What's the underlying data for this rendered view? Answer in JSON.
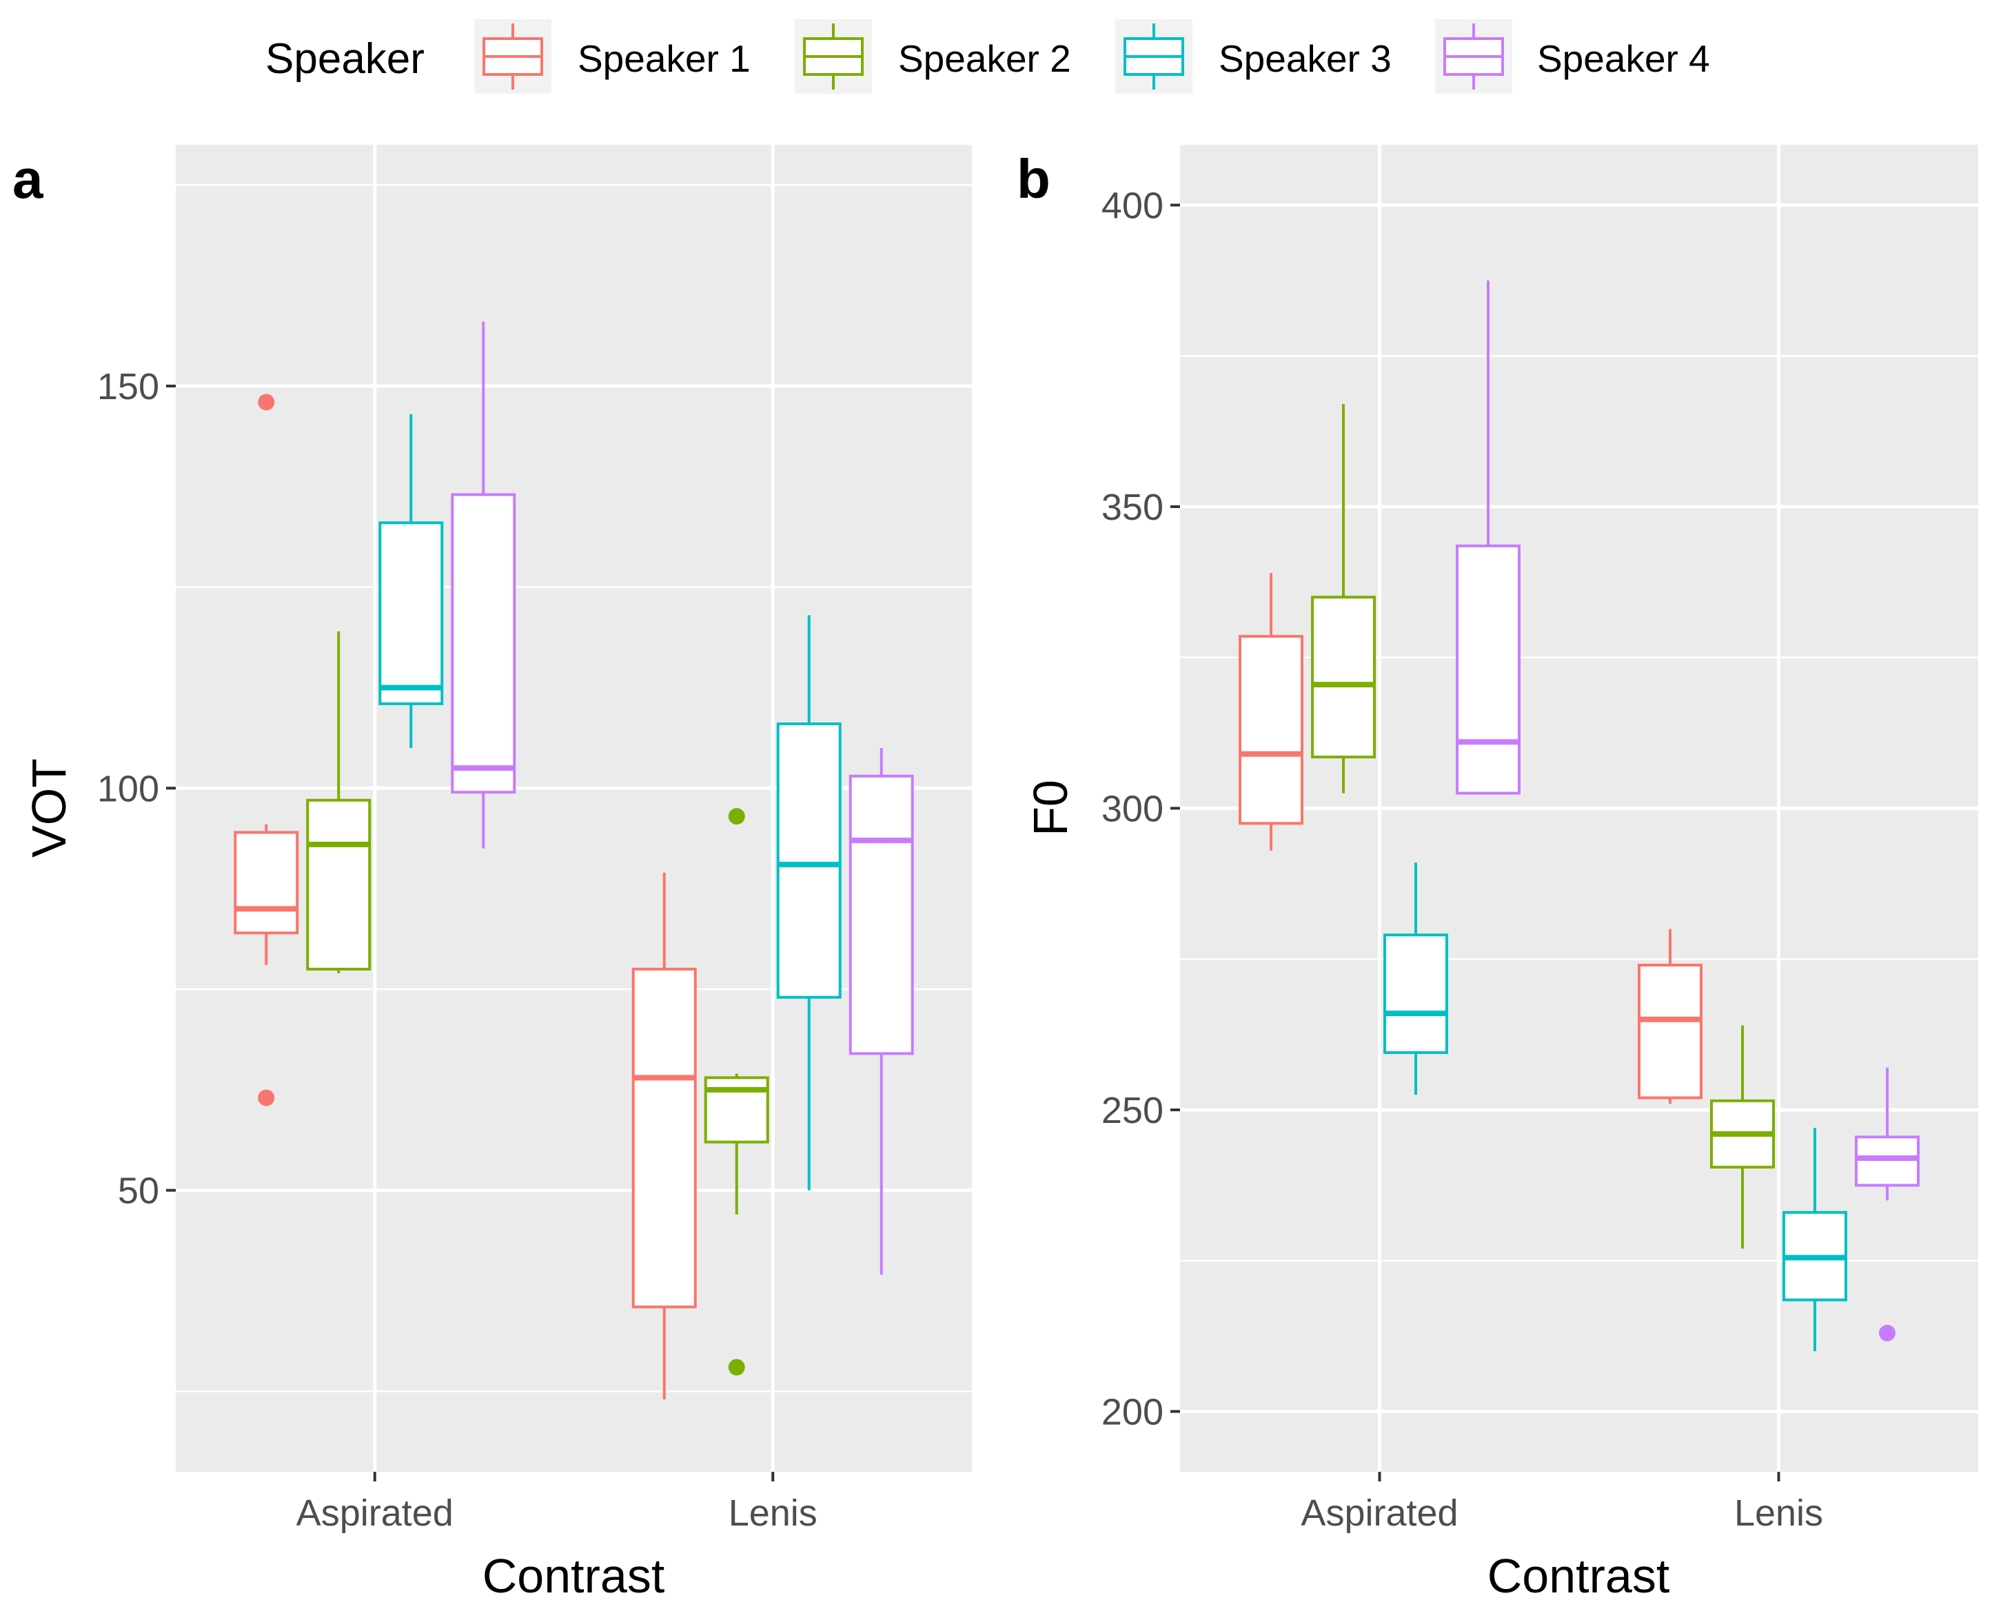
{
  "legend": {
    "title": "Speaker",
    "entries": [
      {
        "label": "Speaker 1",
        "color": "#F8766D"
      },
      {
        "label": "Speaker 2",
        "color": "#7CAE00"
      },
      {
        "label": "Speaker 3",
        "color": "#00BFC4"
      },
      {
        "label": "Speaker 4",
        "color": "#C77CFF"
      }
    ]
  },
  "colors": {
    "panel_background": "#EBEBEB",
    "grid": "#FFFFFF",
    "tick_text": "#4D4D4D"
  },
  "chart_data": [
    {
      "type": "box",
      "panel_tag": "a",
      "xlabel": "Contrast",
      "ylabel": "VOT",
      "categories": [
        "Aspirated",
        "Lenis"
      ],
      "ylim": [
        15,
        180
      ],
      "yticks": [
        50,
        100,
        150
      ],
      "grid": true,
      "series": [
        {
          "name": "Speaker 1",
          "boxes": [
            {
              "category": "Aspirated",
              "whisker_low": 78,
              "q1": 82,
              "median": 85,
              "q3": 94.5,
              "whisker_high": 95.5,
              "outliers": [
                148,
                61.5
              ]
            },
            {
              "category": "Lenis",
              "whisker_low": 24,
              "q1": 35.5,
              "median": 64,
              "q3": 77.5,
              "whisker_high": 89.5,
              "outliers": []
            }
          ]
        },
        {
          "name": "Speaker 2",
          "boxes": [
            {
              "category": "Aspirated",
              "whisker_low": 77,
              "q1": 77.5,
              "median": 93,
              "q3": 98.5,
              "whisker_high": 119.5,
              "outliers": []
            },
            {
              "category": "Lenis",
              "whisker_low": 47,
              "q1": 56,
              "median": 62.5,
              "q3": 64,
              "whisker_high": 64.5,
              "outliers": [
                96.5,
                28
              ]
            }
          ]
        },
        {
          "name": "Speaker 3",
          "boxes": [
            {
              "category": "Aspirated",
              "whisker_low": 105,
              "q1": 110.5,
              "median": 112.5,
              "q3": 133,
              "whisker_high": 146.5,
              "outliers": []
            },
            {
              "category": "Lenis",
              "whisker_low": 50,
              "q1": 74,
              "median": 90.5,
              "q3": 108,
              "whisker_high": 121.5,
              "outliers": []
            }
          ]
        },
        {
          "name": "Speaker 4",
          "boxes": [
            {
              "category": "Aspirated",
              "whisker_low": 92.5,
              "q1": 99.5,
              "median": 102.5,
              "q3": 136.5,
              "whisker_high": 158,
              "outliers": []
            },
            {
              "category": "Lenis",
              "whisker_low": 39.5,
              "q1": 67,
              "median": 93.5,
              "q3": 101.5,
              "whisker_high": 105,
              "outliers": []
            }
          ]
        }
      ]
    },
    {
      "type": "box",
      "panel_tag": "b",
      "xlabel": "Contrast",
      "ylabel": "F0",
      "categories": [
        "Aspirated",
        "Lenis"
      ],
      "ylim": [
        190,
        410
      ],
      "yticks": [
        200,
        250,
        300,
        350,
        400
      ],
      "grid": true,
      "series": [
        {
          "name": "Speaker 1",
          "boxes": [
            {
              "category": "Aspirated",
              "whisker_low": 293,
              "q1": 297.5,
              "median": 309,
              "q3": 328.5,
              "whisker_high": 339,
              "outliers": []
            },
            {
              "category": "Lenis",
              "whisker_low": 251,
              "q1": 252,
              "median": 265,
              "q3": 274,
              "whisker_high": 280,
              "outliers": []
            }
          ]
        },
        {
          "name": "Speaker 2",
          "boxes": [
            {
              "category": "Aspirated",
              "whisker_low": 302.5,
              "q1": 308.5,
              "median": 320.5,
              "q3": 335,
              "whisker_high": 367,
              "outliers": []
            },
            {
              "category": "Lenis",
              "whisker_low": 227,
              "q1": 240.5,
              "median": 246,
              "q3": 251.5,
              "whisker_high": 264,
              "outliers": []
            }
          ]
        },
        {
          "name": "Speaker 3",
          "boxes": [
            {
              "category": "Aspirated",
              "whisker_low": 252.5,
              "q1": 259.5,
              "median": 266,
              "q3": 279,
              "whisker_high": 291,
              "outliers": []
            },
            {
              "category": "Lenis",
              "whisker_low": 210,
              "q1": 218.5,
              "median": 225.5,
              "q3": 233,
              "whisker_high": 247,
              "outliers": []
            }
          ]
        },
        {
          "name": "Speaker 4",
          "boxes": [
            {
              "category": "Aspirated",
              "whisker_low": 302.5,
              "q1": 302.5,
              "median": 311,
              "q3": 343.5,
              "whisker_high": 387.5,
              "outliers": []
            },
            {
              "category": "Lenis",
              "whisker_low": 235,
              "q1": 237.5,
              "median": 242,
              "q3": 245.5,
              "whisker_high": 257,
              "outliers": [
                213
              ]
            }
          ]
        }
      ]
    }
  ]
}
